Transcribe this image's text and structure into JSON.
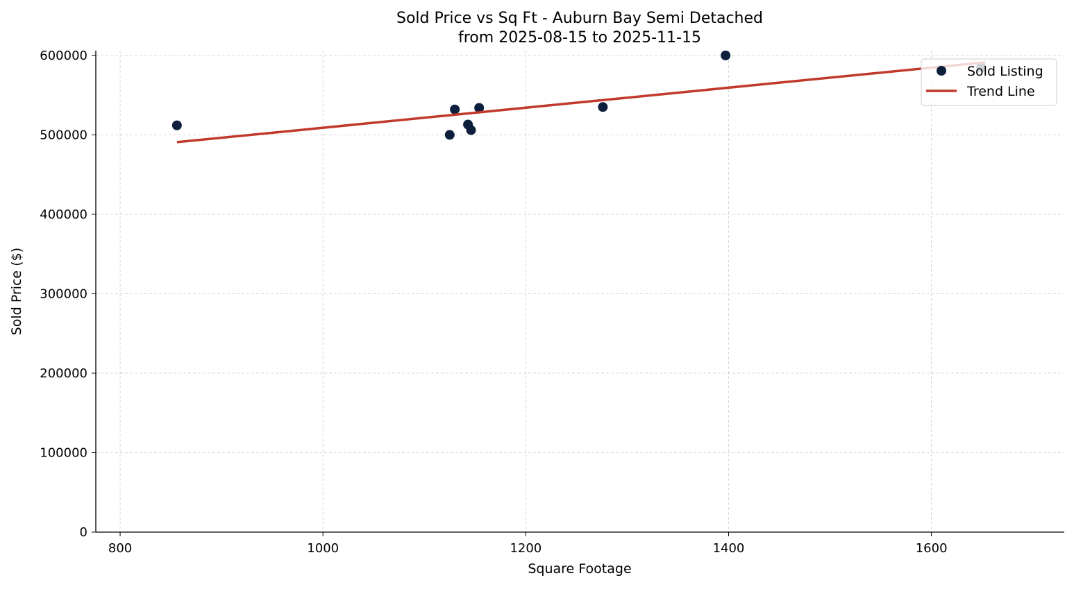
{
  "chart_data": {
    "type": "scatter",
    "title": "Sold Price vs Sq Ft - Auburn Bay Semi Detached",
    "subtitle": "from 2025-08-15 to 2025-11-15",
    "xlabel": "Square Footage",
    "ylabel": "Sold Price ($)",
    "xlim": [
      776,
      1731
    ],
    "ylim": [
      0,
      606000
    ],
    "xticks": [
      800,
      1000,
      1200,
      1400,
      1600
    ],
    "yticks": [
      0,
      100000,
      200000,
      300000,
      400000,
      500000,
      600000
    ],
    "grid": true,
    "legend_position": "top-right",
    "series": [
      {
        "name": "Sold Listing",
        "kind": "scatter",
        "color": "#0d1f3c",
        "points": [
          [
            856,
            512000
          ],
          [
            1125,
            500000
          ],
          [
            1130,
            532000
          ],
          [
            1143,
            513000
          ],
          [
            1146,
            506000
          ],
          [
            1154,
            534000
          ],
          [
            1276,
            535000
          ],
          [
            1397,
            600000
          ],
          [
            1649,
            585000
          ]
        ]
      },
      {
        "name": "Trend Line",
        "kind": "line",
        "color": "#c0392b",
        "points": [
          [
            856,
            490800
          ],
          [
            1653,
            591300
          ]
        ]
      }
    ]
  }
}
